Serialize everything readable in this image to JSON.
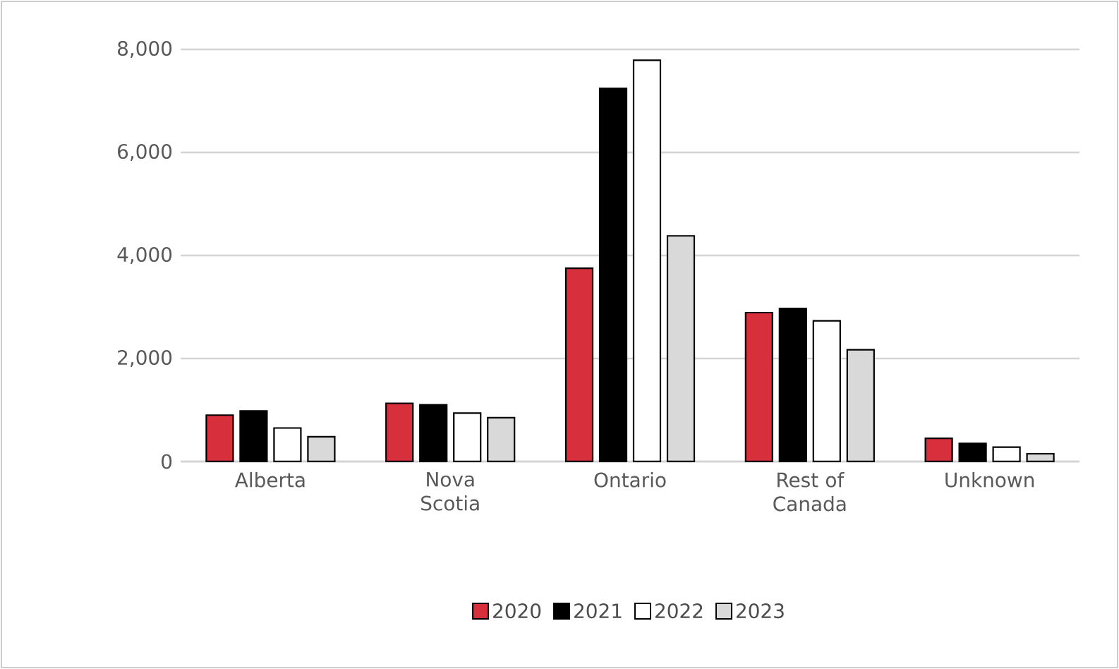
{
  "chart_data": {
    "type": "bar",
    "categories": [
      "Alberta",
      "Nova Scotia",
      "Ontario",
      "Rest of Canada",
      "Unknown"
    ],
    "series": [
      {
        "name": "2020",
        "color": "#d72f3b",
        "values": [
          900,
          1130,
          3750,
          2890,
          450
        ]
      },
      {
        "name": "2021",
        "color": "#000000",
        "values": [
          980,
          1100,
          7240,
          2970,
          350
        ]
      },
      {
        "name": "2022",
        "color": "#ffffff",
        "values": [
          650,
          940,
          7790,
          2730,
          280
        ]
      },
      {
        "name": "2023",
        "color": "#d9d9d9",
        "values": [
          480,
          850,
          4380,
          2170,
          150
        ]
      }
    ],
    "ylim": [
      0,
      8000
    ],
    "yticks": [
      {
        "value": 0,
        "label": "0"
      },
      {
        "value": 2000,
        "label": "2,000"
      },
      {
        "value": 4000,
        "label": "4,000"
      },
      {
        "value": 6000,
        "label": "6,000"
      },
      {
        "value": 8000,
        "label": "8,000"
      }
    ],
    "grid": "y",
    "legend": "bottom"
  }
}
